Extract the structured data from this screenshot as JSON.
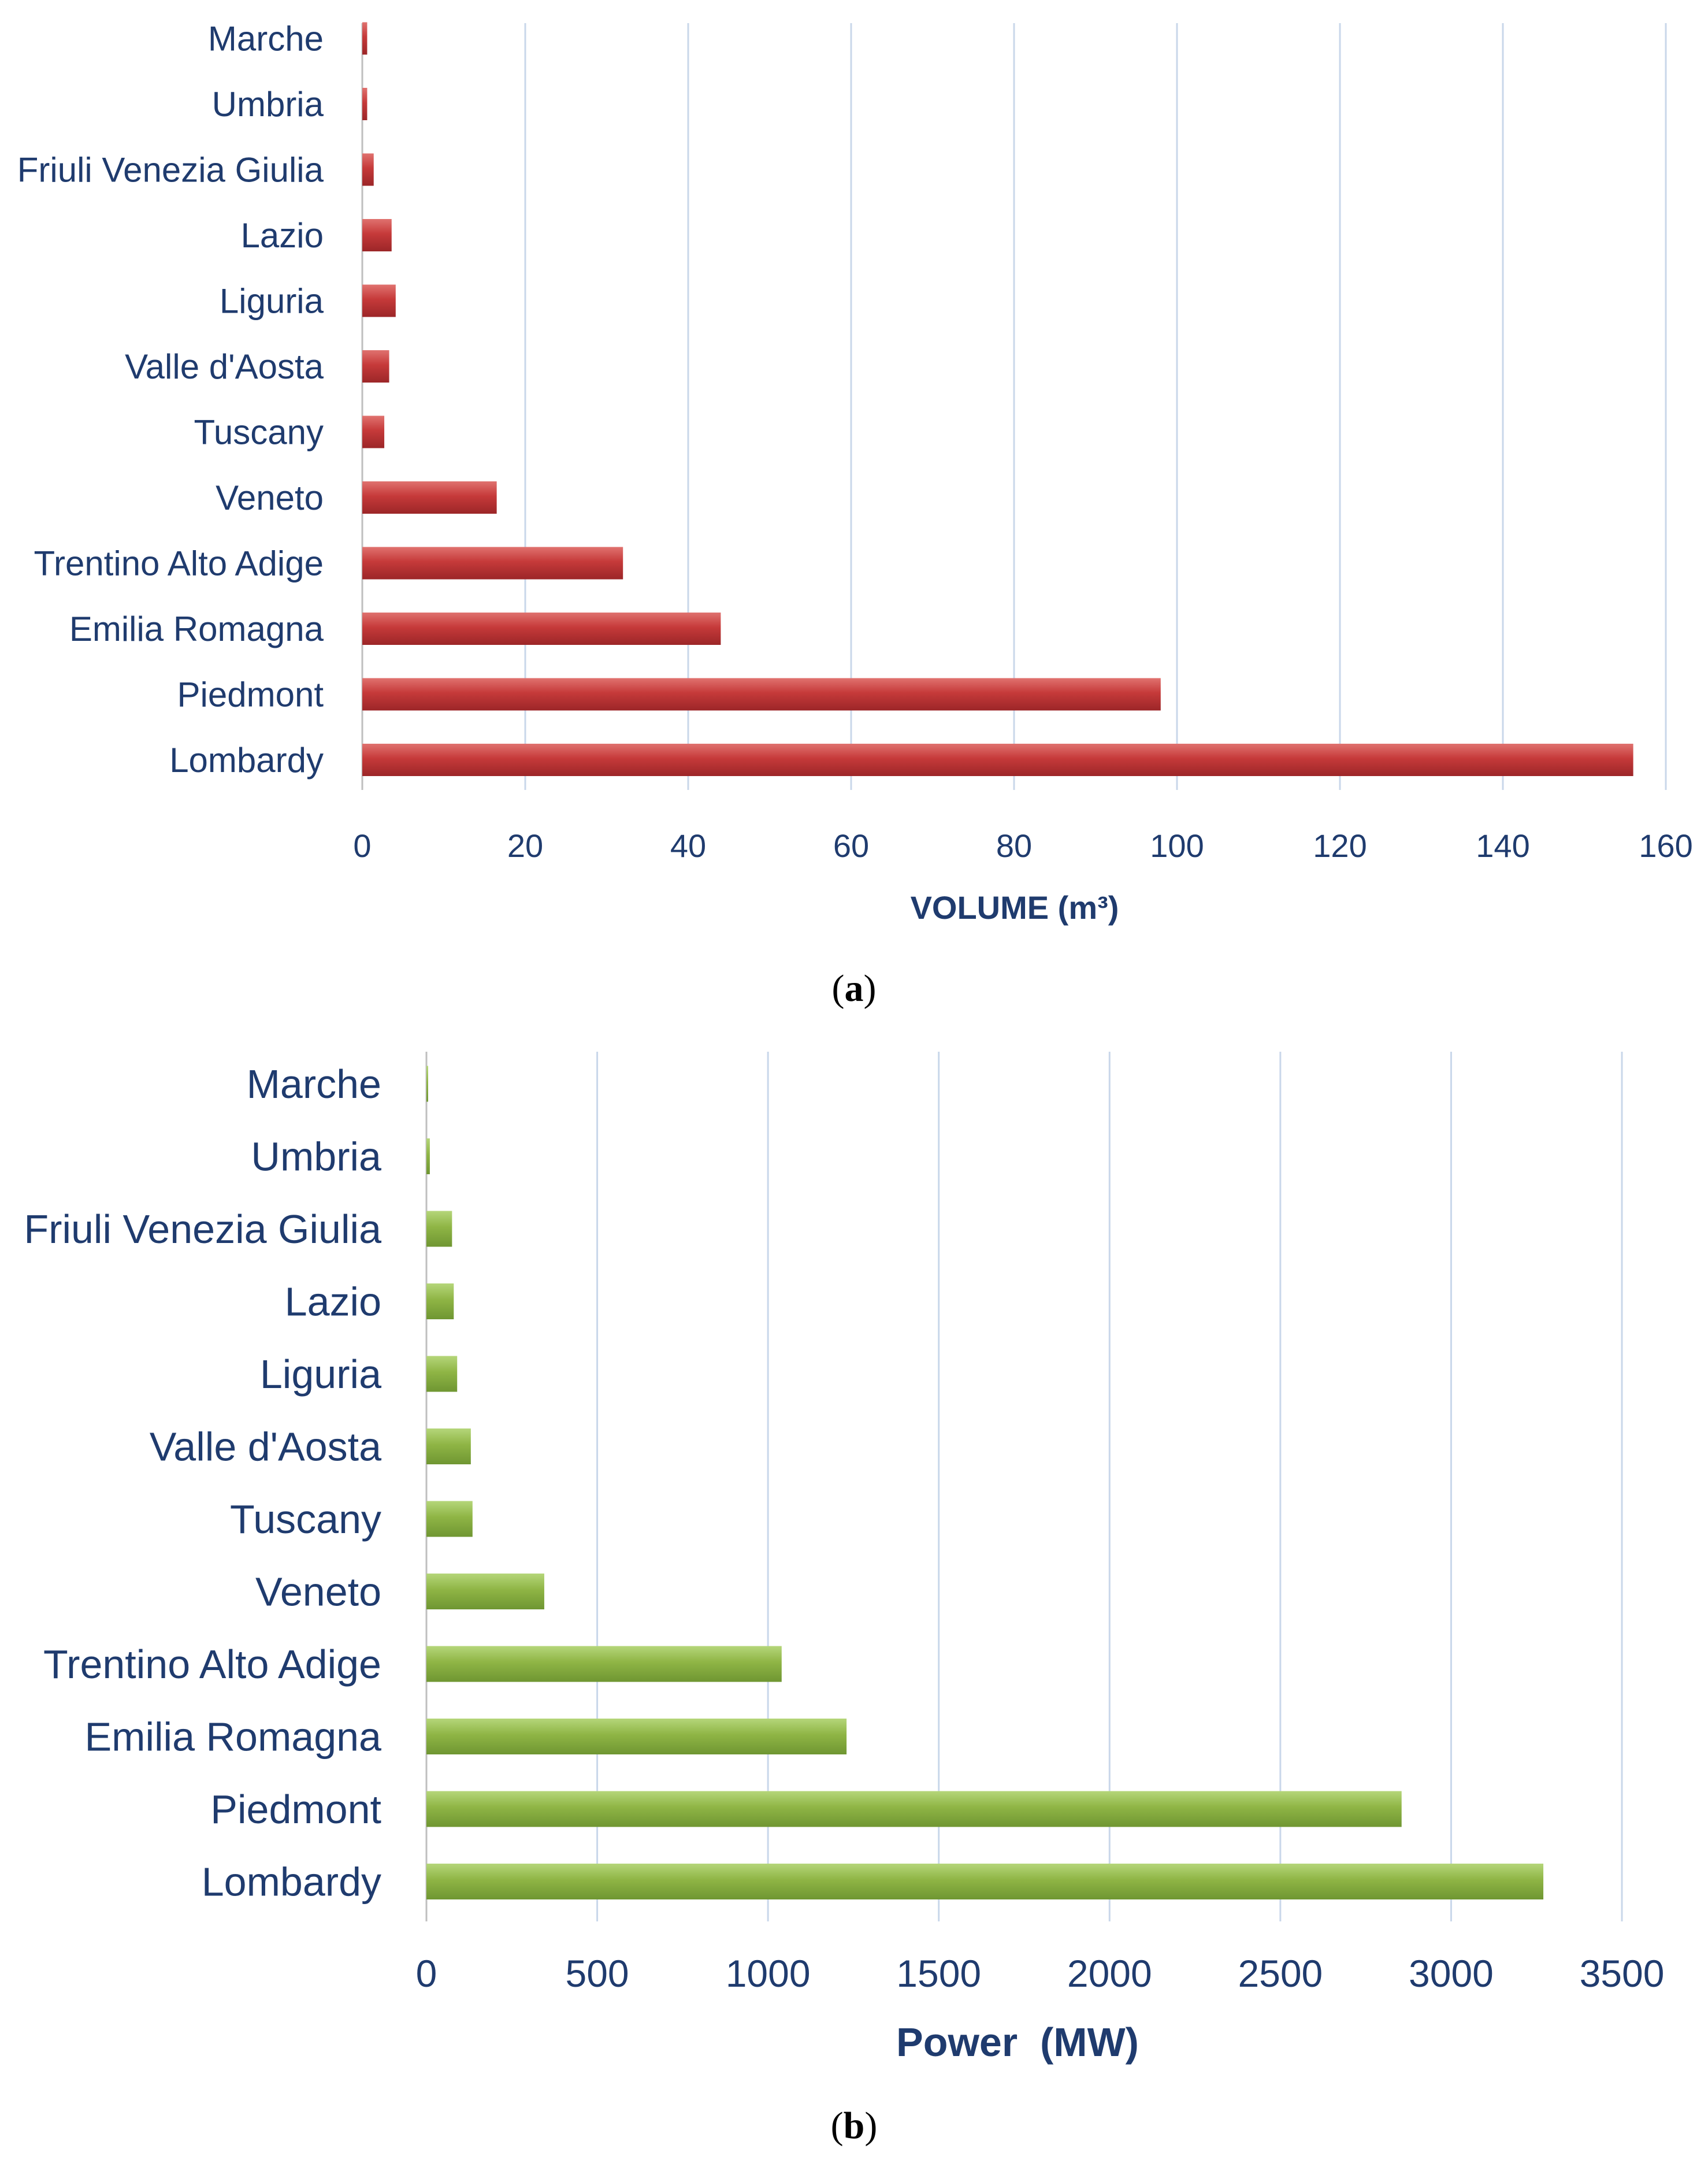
{
  "chart_data": [
    {
      "id": "a",
      "type": "bar",
      "orientation": "horizontal",
      "categories": [
        "Lombardy",
        "Piedmont",
        "Emilia Romagna",
        "Trentino Alto Adige",
        "Veneto",
        "Tuscany",
        "Valle d'Aosta",
        "Liguria",
        "Lazio",
        "Friuli Venezia Giulia",
        "Umbria",
        "Marche"
      ],
      "values": [
        156,
        98,
        44,
        32,
        16.5,
        2.7,
        3.3,
        4.1,
        3.6,
        1.4,
        0.6,
        0.6
      ],
      "xlabel": "VOLUME (m³)",
      "ylabel": "",
      "xlim": [
        0,
        160
      ],
      "xticks": [
        0,
        20,
        40,
        60,
        80,
        100,
        120,
        140,
        160
      ],
      "grid": true,
      "color": "#c0383a",
      "caption_label": "a"
    },
    {
      "id": "b",
      "type": "bar",
      "orientation": "horizontal",
      "categories": [
        "Lombardy",
        "Piedmont",
        "Emilia Romagna",
        "Trentino Alto Adige",
        "Veneto",
        "Tuscany",
        "Valle d'Aosta",
        "Liguria",
        "Lazio",
        "Friuli Venezia Giulia",
        "Umbria",
        "Marche"
      ],
      "values": [
        3270,
        2855,
        1230,
        1040,
        345,
        135,
        130,
        90,
        80,
        75,
        10,
        5
      ],
      "xlabel": "Power  (MW)",
      "ylabel": "",
      "xlim": [
        0,
        3500
      ],
      "xticks": [
        0,
        500,
        1000,
        1500,
        2000,
        2500,
        3000,
        3500
      ],
      "grid": true,
      "color": "#8fb545",
      "caption_label": "b"
    }
  ]
}
